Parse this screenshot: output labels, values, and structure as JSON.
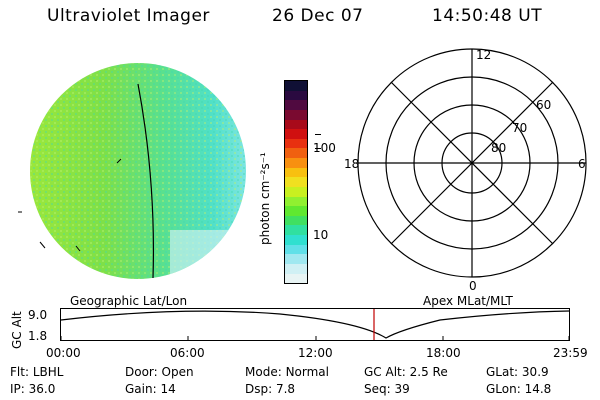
{
  "header": {
    "instrument": "Ultraviolet Imager",
    "date": "26 Dec 07",
    "time": "14:50:48 UT"
  },
  "colorbar": {
    "label": "photon cm⁻²s⁻¹",
    "ticks": [
      "100",
      "10"
    ],
    "colors": [
      "#101035",
      "#2a0a40",
      "#500a40",
      "#7a0a30",
      "#a80a1a",
      "#d01010",
      "#e83010",
      "#f06010",
      "#f89010",
      "#f8c010",
      "#f0e020",
      "#c8f020",
      "#90f030",
      "#60e830",
      "#40e060",
      "#30e0a0",
      "#30e0d0",
      "#60e0e8",
      "#a0e8f0",
      "#d0f0f4",
      "#e8f4f4"
    ]
  },
  "geo_label": "Geographic Lat/Lon",
  "apex_label": "Apex  MLat/MLT",
  "polar": {
    "mlt_labels": {
      "top": "12",
      "right": "6",
      "bottom": "0",
      "left": "18"
    },
    "lat_labels": [
      "60",
      "70",
      "80"
    ]
  },
  "altitude_plot": {
    "ylabel": "GC Alt",
    "yticks": [
      "9.0",
      "1.8"
    ],
    "xticks": [
      "00:00",
      "06:00",
      "12:00",
      "18:00",
      "23:59"
    ],
    "marker_time": "14:50:48"
  },
  "footer": {
    "row1": [
      {
        "label": "Flt:",
        "value": "LBHL"
      },
      {
        "label": "Door:",
        "value": "Open"
      },
      {
        "label": "Mode:",
        "value": "Normal"
      },
      {
        "label": "GC Alt:",
        "value": "2.5 Re"
      },
      {
        "label": "GLat:",
        "value": "30.9"
      }
    ],
    "row2": [
      {
        "label": "IP:",
        "value": "36.0"
      },
      {
        "label": "Gain:",
        "value": "14"
      },
      {
        "label": "Dsp:",
        "value": "7.8"
      },
      {
        "label": "Seq:",
        "value": "39"
      },
      {
        "label": "GLon:",
        "value": "14.8"
      }
    ]
  }
}
